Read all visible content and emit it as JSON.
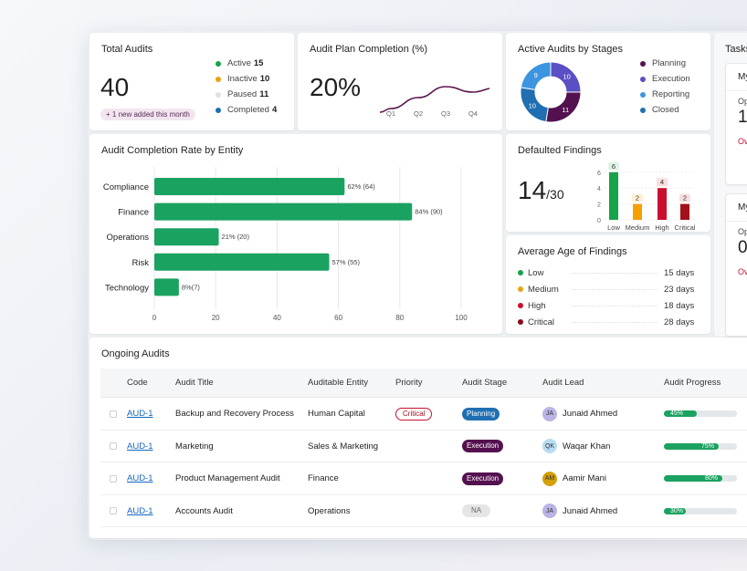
{
  "total_audits": {
    "title": "Total Audits",
    "value": "40",
    "note": "+ 1 new added this month",
    "legend": [
      {
        "label": "Active",
        "count": "15",
        "color": "#16a34a"
      },
      {
        "label": "Inactive",
        "count": "10",
        "color": "#e8a317"
      },
      {
        "label": "Paused",
        "count": "11",
        "color": "#e0e0e0"
      },
      {
        "label": "Completed",
        "count": "4",
        "color": "#1f6fb2"
      }
    ]
  },
  "plan_completion": {
    "title": "Audit Plan Completion (%)",
    "value": "20%",
    "quarters": [
      "Q1",
      "Q2",
      "Q3",
      "Q4"
    ]
  },
  "stages": {
    "title": "Active Audits by Stages",
    "legend": [
      {
        "label": "Planning",
        "color": "#54114f"
      },
      {
        "label": "Execution",
        "color": "#5b4fc4"
      },
      {
        "label": "Reporting",
        "color": "#3d95e0"
      },
      {
        "label": "Closed",
        "color": "#1f6fb2"
      }
    ]
  },
  "tasks": {
    "title": "Tasks",
    "card_a_title": "My",
    "card_a_label": "Op",
    "card_a_value": "1",
    "card_a_status": "Ov",
    "card_b_title": "My",
    "card_b_label": "Op",
    "card_b_value": "0",
    "card_b_status": "Ov"
  },
  "entity_chart_card": {
    "title": "Audit Completion Rate by Entity"
  },
  "defaulted": {
    "title": "Defaulted Findings",
    "count": "14",
    "total": "/30"
  },
  "avg_age": {
    "title": "Average Age of Findings",
    "rows": [
      {
        "label": "Low",
        "value": "15 days",
        "color": "#16a34a"
      },
      {
        "label": "Medium",
        "value": "23 days",
        "color": "#e8a317"
      },
      {
        "label": "High",
        "value": "18 days",
        "color": "#c8102e"
      },
      {
        "label": "Critical",
        "value": "28 days",
        "color": "#8b0a1a"
      }
    ]
  },
  "ongoing": {
    "title": "Ongoing Audits",
    "columns": [
      "Code",
      "Audit Title",
      "Auditable Entity",
      "Priority",
      "Audit Stage",
      "Audit Lead",
      "Audit Progress"
    ],
    "rows": [
      {
        "code": "AUD-1",
        "title": "Backup and Recovery Process",
        "entity": "Human Capital",
        "priority": "Critical",
        "stage": "Planning",
        "stage_color": "#1f6fb2",
        "lead": "Junaid Ahmed",
        "initials": "JA",
        "avatar_color": "#b9b3e6",
        "progress": 0.45,
        "progress_label": "45%"
      },
      {
        "code": "AUD-1",
        "title": "Marketing",
        "entity": "Sales & Marketing",
        "priority": "",
        "stage": "Execution",
        "stage_color": "#54114f",
        "lead": "Waqar Khan",
        "initials": "QK",
        "avatar_color": "#b9dcf2",
        "progress": 0.75,
        "progress_label": "75%"
      },
      {
        "code": "AUD-1",
        "title": "Product Management Audit",
        "entity": "Finance",
        "priority": "",
        "stage": "Execution",
        "stage_color": "#54114f",
        "lead": "Aamir Mani",
        "initials": "AM",
        "avatar_color": "#d4a006",
        "progress": 0.8,
        "progress_label": "80%"
      },
      {
        "code": "AUD-1",
        "title": "Accounts Audit",
        "entity": "Operations",
        "priority": "",
        "stage": "NA",
        "stage_color": "#e5e5e5",
        "lead": "Junaid Ahmed",
        "initials": "JA",
        "avatar_color": "#b9b3e6",
        "progress": 0.3,
        "progress_label": "30%"
      }
    ]
  },
  "chart_data": [
    {
      "type": "line",
      "title": "Audit Plan Completion (%)",
      "categories": [
        "Q1",
        "Q2",
        "Q3",
        "Q4"
      ],
      "values": [
        16,
        22,
        28,
        25
      ]
    },
    {
      "type": "pie",
      "title": "Active Audits by Stages",
      "labels": [
        "Planning",
        "Execution",
        "Reporting",
        "Closed"
      ],
      "values": [
        11,
        10,
        9,
        10
      ],
      "colors": [
        "#54114f",
        "#5b4fc4",
        "#3d95e0",
        "#1f6fb2"
      ]
    },
    {
      "type": "bar",
      "title": "Audit Completion Rate by Entity",
      "categories": [
        "Compliance",
        "Finance",
        "Operations",
        "Risk",
        "Technology"
      ],
      "values": [
        62,
        84,
        21,
        57,
        8
      ],
      "labels": [
        "62% (64)",
        "84% (90)",
        "21% (20)",
        "57% (55)",
        "8%(7)"
      ],
      "xlim": [
        0,
        100
      ],
      "xticks": [
        0,
        20,
        40,
        60,
        80,
        100
      ],
      "color": "#1aa260"
    },
    {
      "type": "bar",
      "title": "Defaulted Findings",
      "categories": [
        "Low",
        "Medium",
        "High",
        "Critical"
      ],
      "values": [
        6,
        2,
        4,
        2
      ],
      "colors": [
        "#16a34a",
        "#f5a000",
        "#c8102e",
        "#a3101a"
      ],
      "ylim": [
        0,
        6
      ],
      "yticks": [
        0,
        2,
        4,
        6
      ]
    }
  ]
}
